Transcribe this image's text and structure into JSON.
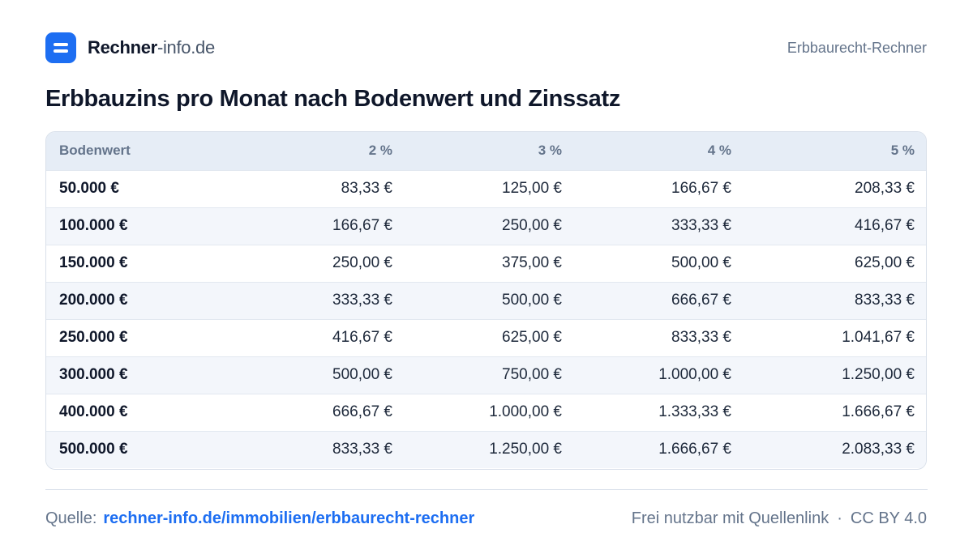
{
  "brand": {
    "name_bold": "Rechner",
    "name_light": "-info.de",
    "logo_icon": "rechner-logo-icon"
  },
  "header_right": "Erbbaurecht-Rechner",
  "title": "Erbbauzins pro Monat nach Bodenwert und Zinssatz",
  "table": {
    "headers": [
      "Bodenwert",
      "2 %",
      "3 %",
      "4 %",
      "5 %"
    ],
    "rows": [
      [
        "50.000 €",
        "83,33 €",
        "125,00 €",
        "166,67 €",
        "208,33 €"
      ],
      [
        "100.000 €",
        "166,67 €",
        "250,00 €",
        "333,33 €",
        "416,67 €"
      ],
      [
        "150.000 €",
        "250,00 €",
        "375,00 €",
        "500,00 €",
        "625,00 €"
      ],
      [
        "200.000 €",
        "333,33 €",
        "500,00 €",
        "666,67 €",
        "833,33 €"
      ],
      [
        "250.000 €",
        "416,67 €",
        "625,00 €",
        "833,33 €",
        "1.041,67 €"
      ],
      [
        "300.000 €",
        "500,00 €",
        "750,00 €",
        "1.000,00 €",
        "1.250,00 €"
      ],
      [
        "400.000 €",
        "666,67 €",
        "1.000,00 €",
        "1.333,33 €",
        "1.666,67 €"
      ],
      [
        "500.000 €",
        "833,33 €",
        "1.250,00 €",
        "1.666,67 €",
        "2.083,33 €"
      ]
    ]
  },
  "footer": {
    "source_label": "Quelle:",
    "source_link": "rechner-info.de/immobilien/erbbaurecht-rechner",
    "usage": "Frei nutzbar mit Quellenlink",
    "separator": "·",
    "license": "CC BY 4.0"
  },
  "colors": {
    "accent": "#1d6ef2",
    "header_bg": "#e6edf6",
    "alt_row_bg": "#f3f6fb",
    "muted_text": "#64748b"
  }
}
